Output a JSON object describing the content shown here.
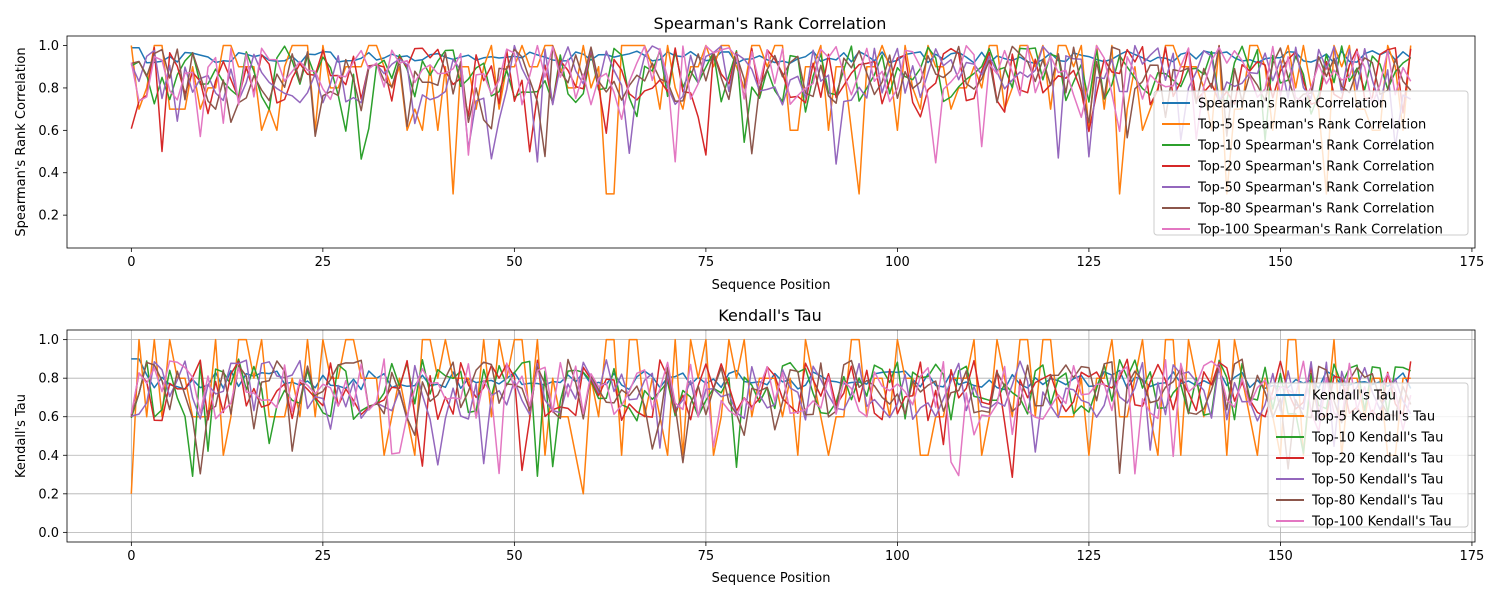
{
  "chart_data": [
    {
      "type": "line",
      "title": "Spearman's Rank Correlation",
      "xlabel": "Sequence Position",
      "ylabel": "Spearman's Rank Correlation",
      "xlim": [
        -8.4,
        175.4
      ],
      "ylim": [
        0.045,
        1.045
      ],
      "xticks": [
        0,
        25,
        50,
        75,
        100,
        125,
        150,
        175
      ],
      "yticks": [
        0.2,
        0.4,
        0.6,
        0.8,
        1.0
      ],
      "ytick_labels": [
        "0.2",
        "0.4",
        "0.6",
        "0.8",
        "1.0"
      ],
      "grid": false,
      "legend_position": "right",
      "series": [
        {
          "name": "Spearman's Rank Correlation",
          "color": "#1f77b4"
        },
        {
          "name": "Top-5 Spearman's Rank Correlation",
          "color": "#ff7f0e"
        },
        {
          "name": "Top-10 Spearman's Rank Correlation",
          "color": "#2ca02c"
        },
        {
          "name": "Top-20 Spearman's Rank Correlation",
          "color": "#d62728"
        },
        {
          "name": "Top-50 Spearman's Rank Correlation",
          "color": "#9467bd"
        },
        {
          "name": "Top-80 Spearman's Rank Correlation",
          "color": "#8c564b"
        },
        {
          "name": "Top-100 Spearman's Rank Correlation",
          "color": "#e377c2"
        }
      ]
    },
    {
      "type": "line",
      "title": "Kendall's Tau",
      "xlabel": "Sequence Position",
      "ylabel": "Kendall's Tau",
      "xlim": [
        -8.4,
        175.4
      ],
      "ylim": [
        -0.05,
        1.05
      ],
      "xticks": [
        0,
        25,
        50,
        75,
        100,
        125,
        150,
        175
      ],
      "yticks": [
        0.0,
        0.2,
        0.4,
        0.6,
        0.8,
        1.0
      ],
      "ytick_labels": [
        "0.0",
        "0.2",
        "0.4",
        "0.6",
        "0.8",
        "1.0"
      ],
      "grid": true,
      "legend_position": "right",
      "series": [
        {
          "name": "Kendall's Tau",
          "color": "#1f77b4"
        },
        {
          "name": "Top-5 Kendall's Tau",
          "color": "#ff7f0e"
        },
        {
          "name": "Top-10 Kendall's Tau",
          "color": "#2ca02c"
        },
        {
          "name": "Top-20 Kendall's Tau",
          "color": "#d62728"
        },
        {
          "name": "Top-50 Kendall's Tau",
          "color": "#9467bd"
        },
        {
          "name": "Top-80 Kendall's Tau",
          "color": "#8c564b"
        },
        {
          "name": "Top-100 Kendall's Tau",
          "color": "#e377c2"
        }
      ]
    }
  ]
}
